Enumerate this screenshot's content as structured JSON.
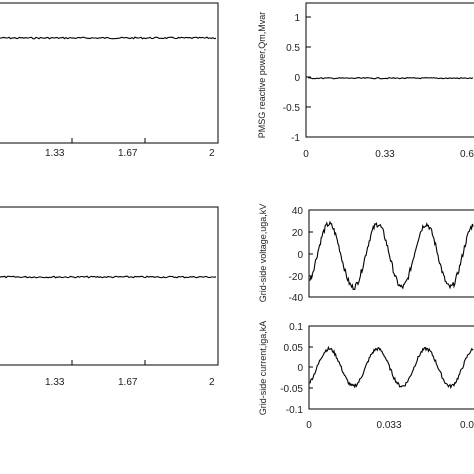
{
  "chart_data": [
    {
      "id": "top-left",
      "type": "line",
      "xlim": [
        1,
        2
      ],
      "xticks": [
        "1.33",
        "1.67",
        "2"
      ],
      "series": [
        {
          "x": [
            1,
            2
          ],
          "y": [
            0.72,
            0.72
          ]
        }
      ]
    },
    {
      "id": "top-right",
      "type": "line",
      "ylabel": "PMSG reactive power,Qm,Mvar",
      "ylim": [
        -1,
        1
      ],
      "yticks": [
        "1",
        "0.5",
        "0",
        "-0.5",
        "-1"
      ],
      "xticks": [
        "0",
        "0.33",
        "0.6"
      ],
      "series": [
        {
          "x": [
            0,
            0.7
          ],
          "y": [
            -0.02,
            -0.02
          ]
        }
      ]
    },
    {
      "id": "bottom-left",
      "type": "line",
      "xlim": [
        1,
        2
      ],
      "xticks": [
        "1.33",
        "1.67",
        "2"
      ],
      "series": [
        {
          "x": [
            1,
            2
          ],
          "y": [
            0.72,
            0.72
          ]
        }
      ]
    },
    {
      "id": "grid-voltage",
      "type": "line",
      "ylabel": "Grid-side voltage,uga,kV",
      "ylim": [
        -40,
        40
      ],
      "yticks": [
        "40",
        "20",
        "0",
        "-20",
        "-40"
      ],
      "series": [
        {
          "amplitude": 29,
          "offset": -2,
          "period": 0.02
        }
      ]
    },
    {
      "id": "grid-current",
      "type": "line",
      "ylabel": "Grid-side current,iga,kA",
      "ylim": [
        -0.1,
        0.1
      ],
      "yticks": [
        "0.1",
        "0.05",
        "0",
        "-0.05",
        "-0.1"
      ],
      "xticks": [
        "0",
        "0.033",
        "0.0"
      ],
      "series": [
        {
          "amplitude": 0.045,
          "offset": 0.0,
          "period": 0.02
        }
      ]
    }
  ]
}
